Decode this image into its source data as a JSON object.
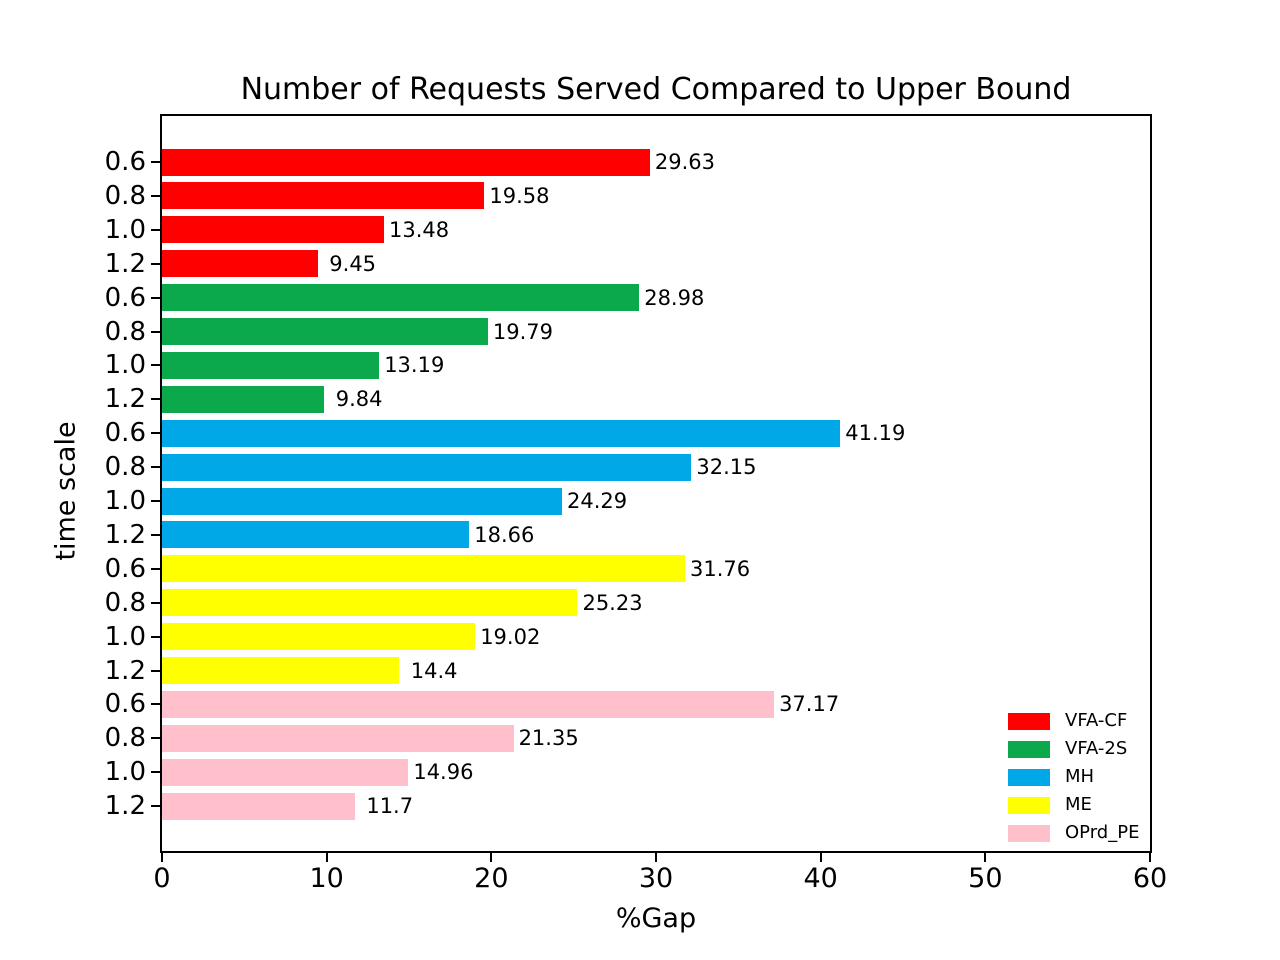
{
  "chart_data": {
    "type": "bar",
    "orientation": "horizontal",
    "title": "Number of Requests Served Compared to Upper Bound",
    "xlabel": "%Gap",
    "ylabel": "time scale",
    "xlim": [
      0,
      60
    ],
    "xticks": [
      0,
      10,
      20,
      30,
      40,
      50,
      60
    ],
    "group_categories": [
      "0.6",
      "0.8",
      "1.0",
      "1.2"
    ],
    "grid": false,
    "legend_position": "lower right",
    "series": [
      {
        "name": "VFA-CF",
        "color": "#ff0000",
        "values": [
          29.63,
          19.58,
          13.48,
          9.45
        ],
        "labels": [
          "29.63",
          "19.58",
          "13.48",
          " 9.45"
        ]
      },
      {
        "name": "VFA-2S",
        "color": "#0ba94c",
        "values": [
          28.98,
          19.79,
          13.19,
          9.84
        ],
        "labels": [
          "28.98",
          "19.79",
          "13.19",
          " 9.84"
        ]
      },
      {
        "name": "MH",
        "color": "#00a8e8",
        "values": [
          41.19,
          32.15,
          24.29,
          18.66
        ],
        "labels": [
          "41.19",
          "32.15",
          "24.29",
          "18.66"
        ]
      },
      {
        "name": "ME",
        "color": "#ffff00",
        "values": [
          31.76,
          25.23,
          19.02,
          14.4
        ],
        "labels": [
          "31.76",
          "25.23",
          "19.02",
          " 14.4"
        ]
      },
      {
        "name": "OPrd_PE",
        "color": "#ffc0cb",
        "values": [
          37.17,
          21.35,
          14.96,
          11.7
        ],
        "labels": [
          "37.17",
          "21.35",
          "14.96",
          " 11.7"
        ]
      }
    ]
  }
}
